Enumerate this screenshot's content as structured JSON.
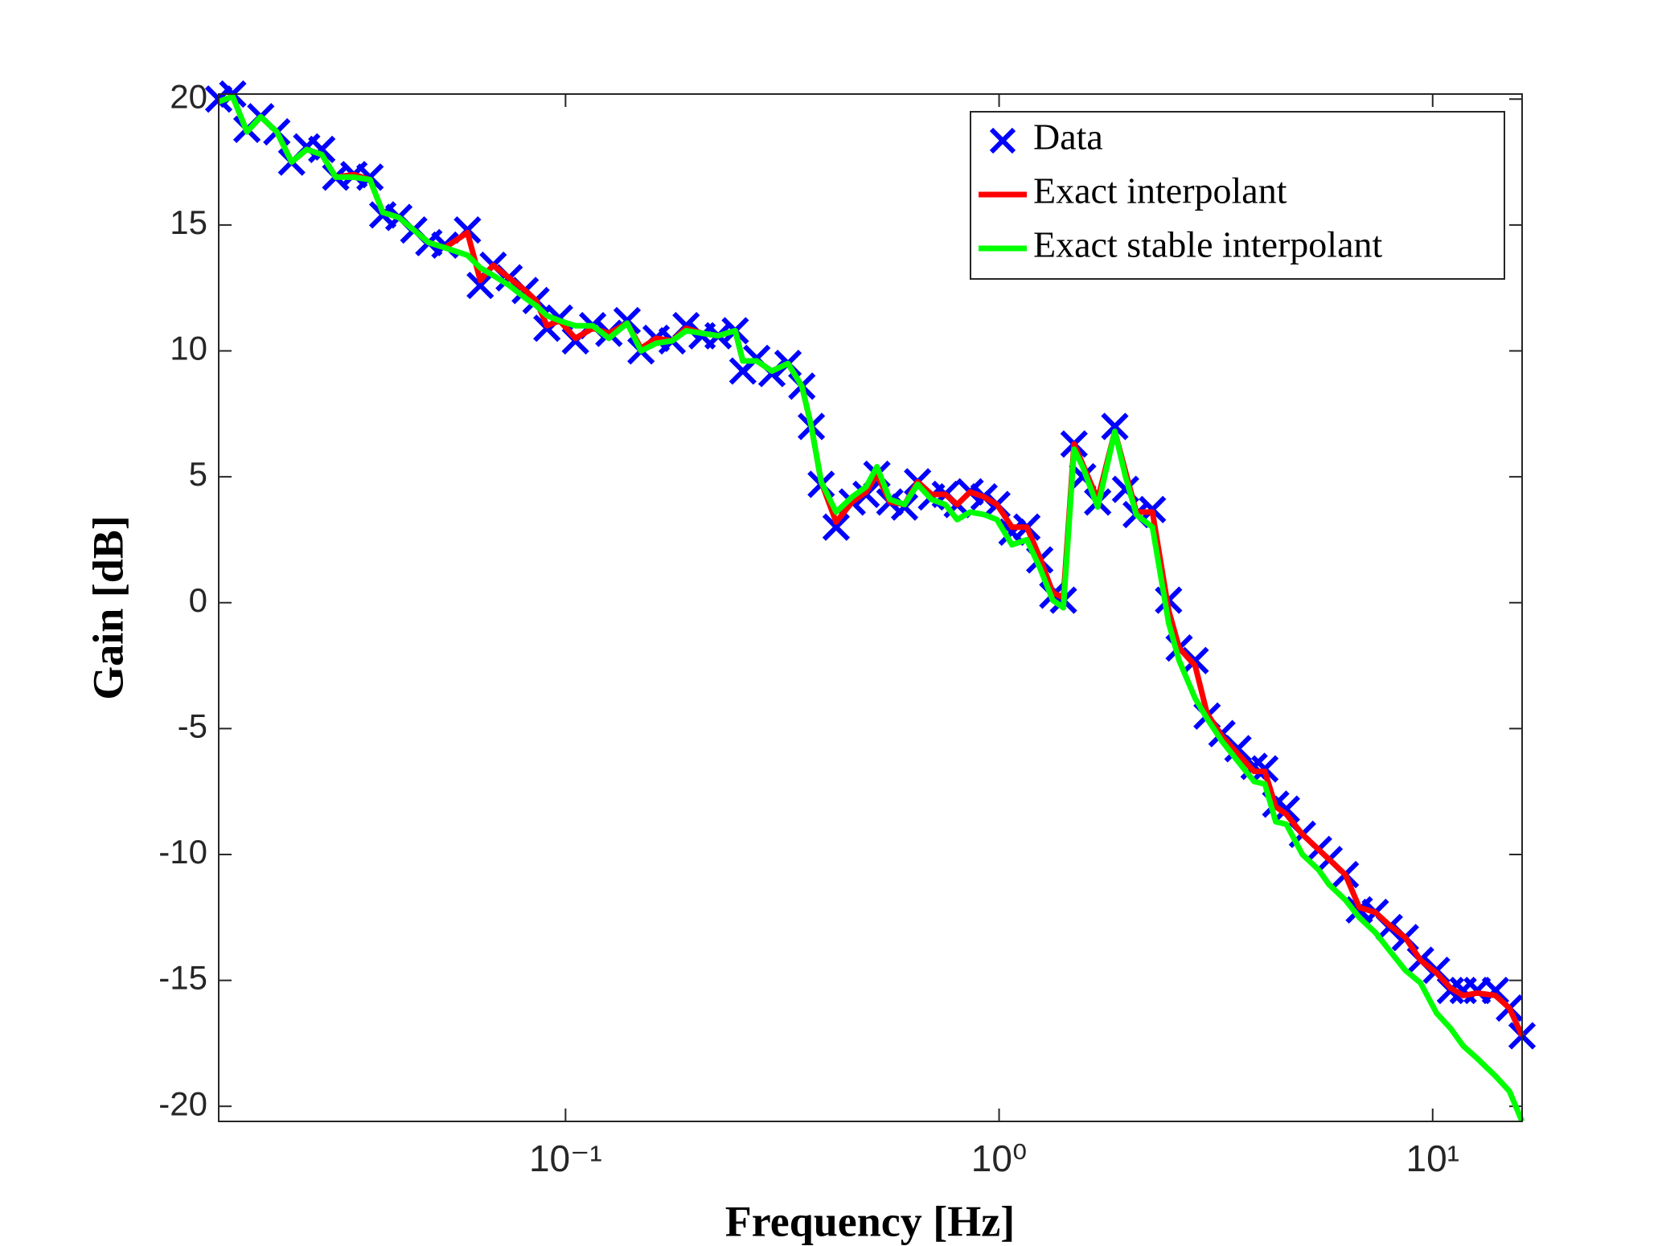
{
  "chart_data": {
    "type": "line",
    "xlabel": "Frequency [Hz]",
    "ylabel": "Gain [dB]",
    "xscale": "log",
    "x": [
      0.01585,
      0.01708,
      0.01841,
      0.01982,
      0.02158,
      0.02335,
      0.02529,
      0.0274,
      0.02951,
      0.0325,
      0.0354,
      0.03788,
      0.04126,
      0.04467,
      0.04838,
      0.0527,
      0.0594,
      0.06357,
      0.06808,
      0.07413,
      0.08072,
      0.08551,
      0.09057,
      0.09683,
      0.1054,
      0.1155,
      0.1259,
      0.1387,
      0.1493,
      0.1618,
      0.1762,
      0.1897,
      0.2065,
      0.2249,
      0.2463,
      0.2564,
      0.2761,
      0.2992,
      0.3259,
      0.3508,
      0.369,
      0.3887,
      0.4209,
      0.4583,
      0.4935,
      0.5226,
      0.5598,
      0.6053,
      0.6486,
      0.6983,
      0.7516,
      0.8008,
      0.8574,
      0.9233,
      0.9886,
      1.071,
      1.159,
      1.241,
      1.33,
      1.407,
      1.489,
      1.559,
      1.688,
      1.849,
      1.957,
      2.072,
      2.258,
      2.46,
      2.602,
      2.833,
      3.018,
      3.266,
      3.556,
      3.874,
      4.102,
      4.345,
      4.598,
      5.008,
      5.454,
      5.772,
      6.29,
      6.772,
      7.375,
      7.943,
      8.65,
      9.376,
      10.21,
      10.99,
      11.76,
      12.67,
      13.96,
      15.03,
      16.08
    ],
    "series": [
      {
        "name": "Data",
        "color": "#0000ff",
        "marker": "x",
        "values": [
          20,
          20.2,
          18.8,
          19.3,
          18.7,
          17.5,
          18.1,
          18,
          16.9,
          17,
          16.9,
          15.4,
          15.3,
          14.8,
          14.3,
          14.2,
          14.8,
          12.6,
          13.4,
          12.9,
          12.4,
          12,
          10.9,
          11.3,
          10.4,
          11,
          10.7,
          11.2,
          10,
          10.5,
          10.4,
          11,
          10.6,
          10.6,
          10.8,
          9.2,
          9.7,
          9.1,
          9.5,
          8.6,
          7,
          4.7,
          3,
          4,
          4.3,
          5.1,
          4,
          3.8,
          4.8,
          4.2,
          4.3,
          3.9,
          4.4,
          4.2,
          3.9,
          2.8,
          3,
          1.7,
          0.3,
          0.1,
          6.3,
          5,
          4,
          7,
          4.5,
          3.5,
          3.7,
          0.1,
          -1.8,
          -2.3,
          -4.5,
          -5.2,
          -5.8,
          -6.5,
          -6.6,
          -8,
          -8.2,
          -9.2,
          -9.8,
          -10.2,
          -10.8,
          -12.2,
          -12.3,
          -12.9,
          -13.3,
          -14.2,
          -14.6,
          -15.4,
          -15.4,
          -15.4,
          -15.4,
          -16.1,
          -17.2
        ]
      },
      {
        "name": "Exact interpolant",
        "color": "#ff0000",
        "values": [
          19.9,
          20.1,
          18.7,
          19.3,
          18.7,
          17.5,
          18,
          17.8,
          16.9,
          17,
          16.8,
          15.5,
          15.3,
          14.8,
          14.3,
          14.1,
          14.7,
          12.8,
          13.4,
          12.9,
          12.4,
          12,
          11,
          11.2,
          10.5,
          10.9,
          10.7,
          11.1,
          10.1,
          10.5,
          10.4,
          10.9,
          10.7,
          10.6,
          10.8,
          9.6,
          9.6,
          9.2,
          9.5,
          8.6,
          7,
          4.8,
          3.2,
          4,
          4.4,
          5.1,
          4,
          3.9,
          4.8,
          4.3,
          4.3,
          3.9,
          4.4,
          4.2,
          3.9,
          3,
          3,
          1.8,
          0.4,
          0.2,
          6.3,
          5.5,
          4.1,
          6.8,
          5.2,
          3.6,
          3.6,
          -0.3,
          -1.8,
          -2.5,
          -4.4,
          -5.3,
          -6,
          -6.7,
          -6.7,
          -8.1,
          -8.4,
          -9.2,
          -9.8,
          -10.2,
          -10.8,
          -12.1,
          -12.3,
          -12.8,
          -13.3,
          -14.2,
          -14.7,
          -15.3,
          -15.6,
          -15.5,
          -15.6,
          -16.1,
          -17.2
        ]
      },
      {
        "name": "Exact stable interpolant",
        "color": "#00ff00",
        "values": [
          19.9,
          20.1,
          18.7,
          19.3,
          18.7,
          17.5,
          18,
          17.8,
          16.9,
          16.9,
          16.8,
          15.5,
          15.3,
          14.8,
          14.3,
          14.1,
          13.8,
          13.3,
          13,
          12.6,
          12.1,
          11.8,
          11.4,
          11.2,
          11,
          11,
          10.5,
          11.1,
          10,
          10.3,
          10.4,
          10.8,
          10.7,
          10.6,
          10.8,
          9.6,
          9.6,
          9.2,
          9.5,
          8.6,
          7,
          4.8,
          3.6,
          4.2,
          4.6,
          5.4,
          4.1,
          3.9,
          4.7,
          4.1,
          3.9,
          3.3,
          3.6,
          3.5,
          3.3,
          2.3,
          2.5,
          1.4,
          0.1,
          -0.2,
          6.1,
          5.4,
          3.8,
          6.8,
          5,
          3.5,
          3,
          -0.8,
          -2.3,
          -3.8,
          -4.6,
          -5.5,
          -6.3,
          -7.1,
          -7.2,
          -8.7,
          -8.8,
          -10,
          -10.6,
          -11.2,
          -11.8,
          -12.5,
          -13.1,
          -13.8,
          -14.6,
          -15.1,
          -16.3,
          -16.9,
          -17.6,
          -18.1,
          -18.8,
          -19.4,
          -20.6
        ]
      }
    ],
    "xlim": [
      0.01585,
      16.08
    ],
    "xticks": [
      {
        "value": 0.1,
        "label": "10⁻¹"
      },
      {
        "value": 1,
        "label": "10⁰"
      },
      {
        "value": 10,
        "label": "10¹"
      }
    ],
    "ylim": [
      -20.6,
      20.2
    ],
    "yticks": [
      -20,
      -15,
      -10,
      -5,
      0,
      5,
      10,
      15,
      20
    ],
    "legend": "northeast",
    "grid": false
  }
}
